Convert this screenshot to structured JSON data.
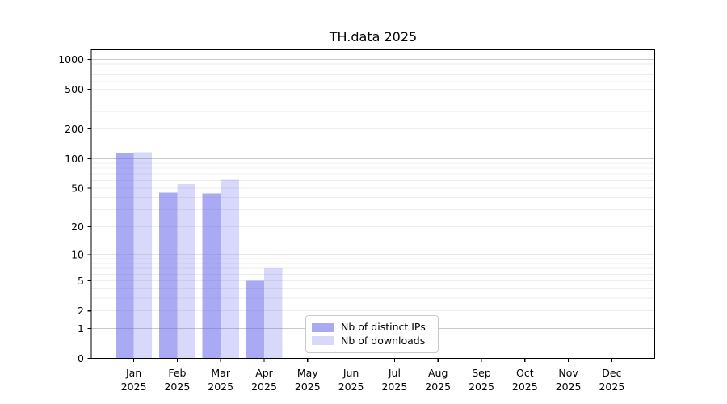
{
  "chart_data": {
    "type": "bar",
    "title": "TH.data 2025",
    "categories": [
      "Jan",
      "Feb",
      "Mar",
      "Apr",
      "May",
      "Jun",
      "Jul",
      "Aug",
      "Sep",
      "Oct",
      "Nov",
      "Dec"
    ],
    "category_year": "2025",
    "series": [
      {
        "name": "Nb of distinct IPs",
        "color": "rgba(100,100,235,0.55)",
        "values": [
          115,
          45,
          44,
          5,
          0,
          0,
          0,
          0,
          0,
          0,
          0,
          0
        ]
      },
      {
        "name": "Nb of downloads",
        "color": "rgba(100,100,235,0.25)",
        "values": [
          116,
          55,
          61,
          7,
          0,
          0,
          0,
          0,
          0,
          0,
          0,
          0
        ]
      }
    ],
    "y_axis": {
      "scale": "log1p",
      "ticks": [
        0,
        1,
        2,
        5,
        10,
        20,
        50,
        100,
        200,
        500,
        1000
      ],
      "max": 1250
    },
    "x_axis": {
      "tick_label_line1": [
        "Jan",
        "Feb",
        "Mar",
        "Apr",
        "May",
        "Jun",
        "Jul",
        "Aug",
        "Sep",
        "Oct",
        "Nov",
        "Dec"
      ],
      "tick_label_line2": "2025"
    },
    "grid": {
      "on": true,
      "major_values": [
        1,
        10,
        100,
        1000
      ],
      "minor_decades": [
        1,
        10,
        100
      ],
      "minor_multipliers": [
        2,
        3,
        4,
        5,
        6,
        7,
        8,
        9
      ]
    },
    "legend": {
      "position": "inside-bottom-center"
    },
    "colors": {
      "bar_distinct_ips": "rgba(100,100,235,0.55)",
      "bar_downloads": "rgba(100,100,235,0.25)",
      "grid_major": "#c9c9c9",
      "grid_minor": "#ededed",
      "axis": "#000000",
      "text": "#000000",
      "legend_border": "#c8c8c8"
    }
  }
}
